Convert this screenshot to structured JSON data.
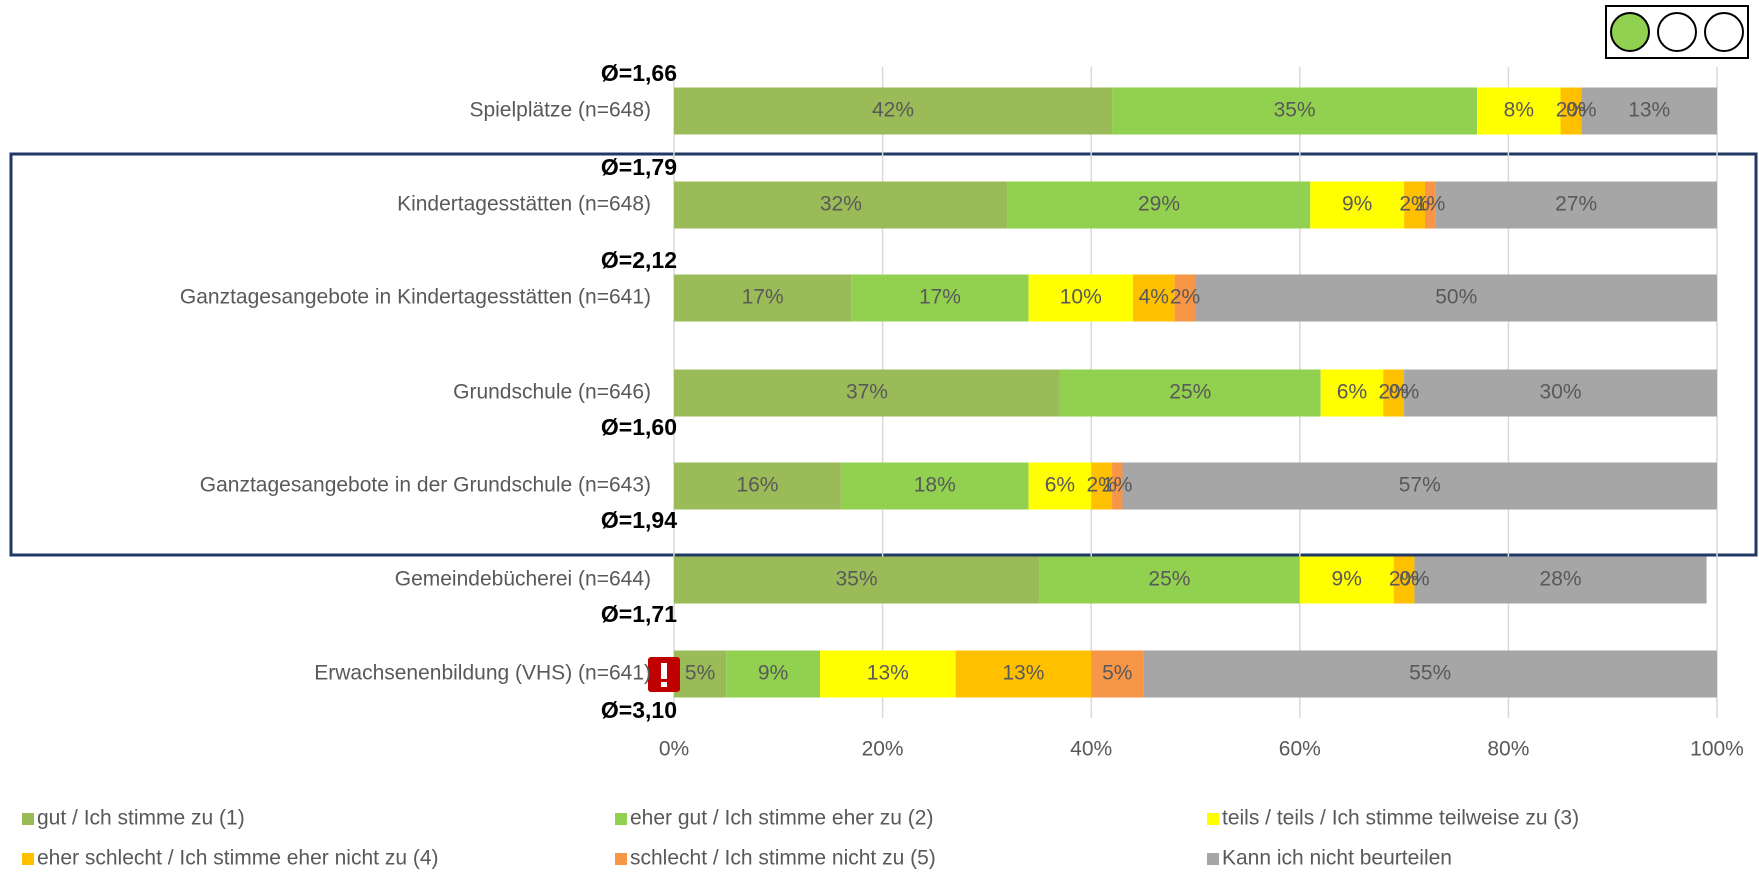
{
  "chart_data": {
    "type": "stacked-bar-horizontal",
    "categories": [
      "Spielplätze (n=648)",
      "Kindertagesstätten (n=648)",
      "Ganztagesangebote in Kindertagesstätten (n=641)",
      "Grundschule (n=646)",
      "Ganztagesangebote in der Grundschule (n=643)",
      "Gemeindebücherei (n=644)",
      "Erwachsenenbildung (VHS) (n=641)"
    ],
    "averages": [
      "Ø=1,66",
      "Ø=1,79",
      "Ø=2,12",
      "Ø=1,60",
      "Ø=1,94",
      "Ø=1,71",
      "Ø=3,10"
    ],
    "series": [
      {
        "name": "gut / Ich stimme zu (1)",
        "color": "#9bbb59",
        "values": [
          42,
          32,
          17,
          37,
          16,
          35,
          5
        ],
        "value_labels": [
          "42%",
          "32%",
          "17%",
          "37%",
          "16%",
          "35%",
          "5%"
        ]
      },
      {
        "name": "eher gut / Ich stimme eher zu (2)",
        "color": "#92d050",
        "values": [
          35,
          29,
          17,
          25,
          18,
          25,
          9
        ],
        "value_labels": [
          "35%",
          "29%",
          "17%",
          "25%",
          "18%",
          "25%",
          "9%"
        ]
      },
      {
        "name": "teils / teils / Ich stimme teilweise zu (3)",
        "color": "#ffff00",
        "values": [
          8,
          9,
          10,
          6,
          6,
          9,
          13
        ],
        "value_labels": [
          "8%",
          "9%",
          "10%",
          "6%",
          "6%",
          "9%",
          "13%"
        ]
      },
      {
        "name": "eher schlecht / Ich stimme eher nicht zu (4)",
        "color": "#ffc000",
        "values": [
          2,
          2,
          4,
          2,
          2,
          2,
          13
        ],
        "value_labels": [
          "2%",
          "2%",
          "4%",
          "2%",
          "2%",
          "2%",
          "13%"
        ]
      },
      {
        "name": "schlecht / Ich stimme nicht zu (5)",
        "color": "#f79646",
        "values": [
          0,
          1,
          2,
          0,
          1,
          0,
          5
        ],
        "value_labels": [
          "0%",
          "1%",
          "2%",
          "0%",
          "1%",
          "0%",
          "5%"
        ]
      },
      {
        "name": "Kann ich nicht beurteilen",
        "color": "#a6a6a6",
        "values": [
          13,
          27,
          50,
          30,
          57,
          28,
          55
        ],
        "value_labels": [
          "13%",
          "27%",
          "50%",
          "30%",
          "57%",
          "28%",
          "55%"
        ]
      }
    ],
    "xlim": [
      0,
      100
    ],
    "xticks": [
      {
        "value": 0,
        "label": "0%"
      },
      {
        "value": 20,
        "label": "20%"
      },
      {
        "value": 40,
        "label": "40%"
      },
      {
        "value": 60,
        "label": "60%"
      },
      {
        "value": 80,
        "label": "80%"
      },
      {
        "value": 100,
        "label": "100%"
      }
    ],
    "grid": true
  }
}
